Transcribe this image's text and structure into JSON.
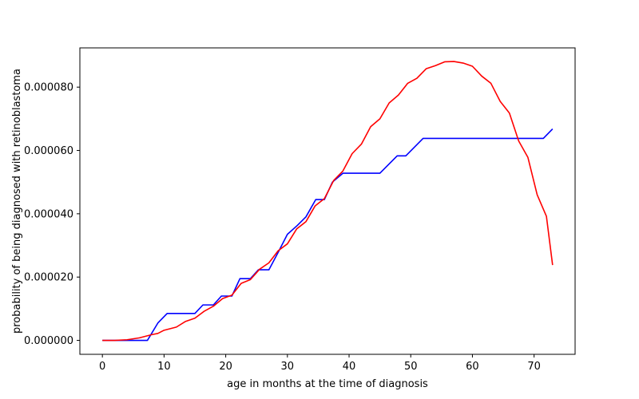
{
  "chart_data": {
    "type": "line",
    "title": "",
    "xlabel": "age in months at the time of diagnosis",
    "ylabel": "probability of being diagnosed with retinoblastoma",
    "xlim": [
      -3.65,
      76.65
    ],
    "ylim": [
      -4.4e-06,
      9.24e-05
    ],
    "x_ticks": [
      0,
      10,
      20,
      30,
      40,
      50,
      60,
      70
    ],
    "x_tick_labels": [
      "0",
      "10",
      "20",
      "30",
      "40",
      "50",
      "60",
      "70"
    ],
    "y_ticks": [
      0,
      2e-05,
      4e-05,
      6e-05,
      8e-05
    ],
    "y_tick_labels": [
      "0.000000",
      "0.000020",
      "0.000040",
      "0.000060",
      "0.000080"
    ],
    "grid": false,
    "legend": "none",
    "series": [
      {
        "color": "#0000ff",
        "x": [
          0,
          7.3,
          9.0,
          10.5,
          15.0,
          16.3,
          18.0,
          19.3,
          21.0,
          22.3,
          24.0,
          25.3,
          27.0,
          28.5,
          30.0,
          31.6,
          33.0,
          34.6,
          36.0,
          37.3,
          39.0,
          45.0,
          47.8,
          49.2,
          52.0,
          71.5,
          73.0
        ],
        "y": [
          0,
          0,
          5.5e-06,
          8.5e-06,
          8.5e-06,
          1.12e-05,
          1.12e-05,
          1.4e-05,
          1.4e-05,
          1.95e-05,
          1.95e-05,
          2.23e-05,
          2.23e-05,
          2.78e-05,
          3.35e-05,
          3.63e-05,
          3.9e-05,
          4.45e-05,
          4.45e-05,
          5e-05,
          5.28e-05,
          5.28e-05,
          5.83e-05,
          5.83e-05,
          6.38e-05,
          6.38e-05,
          6.68e-05
        ]
      },
      {
        "color": "#ff0000",
        "x": [
          0,
          2,
          4,
          6,
          8,
          9,
          10,
          12,
          13.5,
          15,
          16.5,
          18,
          19.5,
          21,
          22.5,
          24,
          25.5,
          27,
          28.5,
          30,
          31.5,
          33,
          34.5,
          36,
          37.5,
          39,
          40.5,
          42,
          43.5,
          45,
          46.5,
          48,
          49.5,
          51,
          52.5,
          54,
          55.5,
          57,
          58.5,
          60,
          61.5,
          63,
          64.5,
          66,
          67.5,
          69,
          70.5,
          72,
          73
        ],
        "y": [
          0,
          0,
          2e-07,
          8e-07,
          1.8e-06,
          2.2e-06,
          3.2e-06,
          4.2e-06,
          6e-06,
          7e-06,
          9.2e-06,
          1.08e-05,
          1.32e-05,
          1.43e-05,
          1.8e-05,
          1.92e-05,
          2.25e-05,
          2.45e-05,
          2.83e-05,
          3.05e-05,
          3.52e-05,
          3.75e-05,
          4.25e-05,
          4.48e-05,
          5.05e-05,
          5.35e-05,
          5.9e-05,
          6.2e-05,
          6.75e-05,
          7e-05,
          7.5e-05,
          7.75e-05,
          8.12e-05,
          8.28e-05,
          8.58e-05,
          8.68e-05,
          8.8e-05,
          8.81e-05,
          8.76e-05,
          8.66e-05,
          8.35e-05,
          8.12e-05,
          7.55e-05,
          7.18e-05,
          6.3e-05,
          5.78e-05,
          4.6e-05,
          3.92e-05,
          2.38e-05
        ]
      }
    ]
  }
}
